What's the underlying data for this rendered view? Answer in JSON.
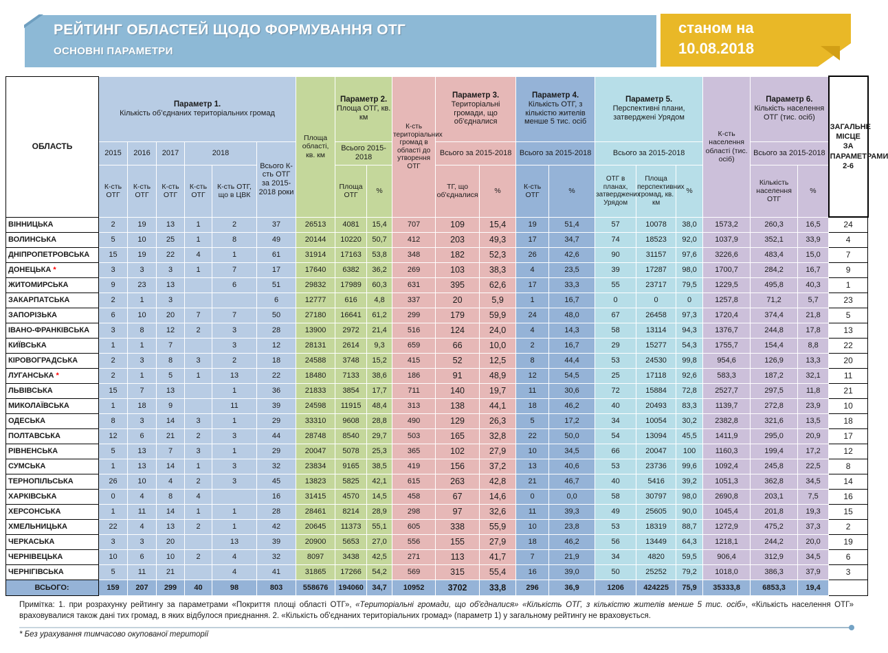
{
  "banner": {
    "title": "РЕЙТИНГ ОБЛАСТЕЙ ЩОДО ФОРМУВАННЯ ОТГ",
    "subtitle": "ОСНОВНІ ПАРАМЕТРИ",
    "date_badge": {
      "line1": "станом на",
      "line2": "10.08.2018"
    }
  },
  "colors": {
    "banner_blue": "#8DB9D6",
    "badge_yellow": "#E9B827",
    "param1_blue": "#B8CCE4",
    "green": "#C4D79B",
    "pink": "#E6B8B7",
    "param4_blue": "#95B3D7",
    "cyan": "#B7DEE8",
    "purple": "#CCC0DA",
    "totals_blue": "#95B3D7",
    "asterisk_red": "#FF0000"
  },
  "table": {
    "headers": {
      "oblast": "ОБЛАСТЬ",
      "param1": {
        "title": "Параметр 1.",
        "subtitle": "Кількість об’єднаних територіальних громад"
      },
      "years": [
        "2015",
        "2016",
        "2017",
        "2018"
      ],
      "k_otg": "К-сть ОТГ",
      "k_otg_cvk": "К-сть ОТГ, що в ЦВК",
      "total_k_otg": "Всього К-сть ОТГ за 2015-2018 роки",
      "area_oblast": "Площа області, кв. км",
      "param2": {
        "title": "Параметр 2.",
        "subtitle": "Площа ОТГ, кв. км",
        "total": "Всього 2015-2018",
        "col1": "Площа ОТГ",
        "col2": "%"
      },
      "k_teryt_gromad": "К-сть територіальних громад в області до утворення ОТГ",
      "param3": {
        "title": "Параметр 3.",
        "subtitle": "Територіальні громади, що об'єдналися",
        "total": "Всього за 2015-2018",
        "col1": "ТГ, що об'єдналися",
        "col2": "%"
      },
      "param4": {
        "title": "Параметр 4.",
        "subtitle": "Кількість ОТГ, з кількістю жителів менше 5 тис. осіб",
        "total": "Всього за 2015-2018",
        "col1": "К-сть ОТГ",
        "col2": "%"
      },
      "param5": {
        "title": "Параметр 5.",
        "subtitle": "Перспективні плани, затверджені Урядом",
        "total": "Всього за 2015-2018",
        "col1": "ОТГ в планах, затверджених Урядом",
        "col2": "Площа перспективних громад, кв. км",
        "col3": "%"
      },
      "k_naselennya_oblasti": "К-сть населення області (тис. осіб)",
      "param6": {
        "title": "Параметр 6.",
        "subtitle": "Кількість населення ОТГ (тис. осіб)",
        "total": "Всього за 2015-2018",
        "col1": "Кількість населення ОТГ",
        "col2": "%"
      },
      "place": "ЗАГАЛЬНЕ МІСЦЕ ЗА ПАРАМЕТРАМИ 2-6"
    },
    "rows": [
      {
        "name": "ВІННИЦЬКА",
        "star": false,
        "v": [
          "2",
          "19",
          "13",
          "1",
          "2",
          "37",
          "26513",
          "4081",
          "15,4",
          "707",
          "109",
          "15,4",
          "19",
          "51,4",
          "57",
          "10078",
          "38,0",
          "1573,2",
          "260,3",
          "16,5",
          "24"
        ]
      },
      {
        "name": "ВОЛИНСЬКА",
        "star": false,
        "v": [
          "5",
          "10",
          "25",
          "1",
          "8",
          "49",
          "20144",
          "10220",
          "50,7",
          "412",
          "203",
          "49,3",
          "17",
          "34,7",
          "74",
          "18523",
          "92,0",
          "1037,9",
          "352,1",
          "33,9",
          "4"
        ]
      },
      {
        "name": "ДНІПРОПЕТРОВСЬКА",
        "star": false,
        "v": [
          "15",
          "19",
          "22",
          "4",
          "1",
          "61",
          "31914",
          "17163",
          "53,8",
          "348",
          "182",
          "52,3",
          "26",
          "42,6",
          "90",
          "31157",
          "97,6",
          "3226,6",
          "483,4",
          "15,0",
          "7"
        ]
      },
      {
        "name": "ДОНЕЦЬКА",
        "star": true,
        "v": [
          "3",
          "3",
          "3",
          "1",
          "7",
          "17",
          "17640",
          "6382",
          "36,2",
          "269",
          "103",
          "38,3",
          "4",
          "23,5",
          "39",
          "17287",
          "98,0",
          "1700,7",
          "284,2",
          "16,7",
          "9"
        ]
      },
      {
        "name": "ЖИТОМИРСЬКА",
        "star": false,
        "v": [
          "9",
          "23",
          "13",
          "",
          "6",
          "51",
          "29832",
          "17989",
          "60,3",
          "631",
          "395",
          "62,6",
          "17",
          "33,3",
          "55",
          "23717",
          "79,5",
          "1229,5",
          "495,8",
          "40,3",
          "1"
        ]
      },
      {
        "name": "ЗАКАРПАТСЬКА",
        "star": false,
        "v": [
          "2",
          "1",
          "3",
          "",
          "",
          "6",
          "12777",
          "616",
          "4,8",
          "337",
          "20",
          "5,9",
          "1",
          "16,7",
          "0",
          "0",
          "0",
          "1257,8",
          "71,2",
          "5,7",
          "23"
        ]
      },
      {
        "name": "ЗАПОРІЗЬКА",
        "star": false,
        "v": [
          "6",
          "10",
          "20",
          "7",
          "7",
          "50",
          "27180",
          "16641",
          "61,2",
          "299",
          "179",
          "59,9",
          "24",
          "48,0",
          "67",
          "26458",
          "97,3",
          "1720,4",
          "374,4",
          "21,8",
          "5"
        ]
      },
      {
        "name": "ІВАНО-ФРАНКІВСЬКА",
        "star": false,
        "v": [
          "3",
          "8",
          "12",
          "2",
          "3",
          "28",
          "13900",
          "2972",
          "21,4",
          "516",
          "124",
          "24,0",
          "4",
          "14,3",
          "58",
          "13114",
          "94,3",
          "1376,7",
          "244,8",
          "17,8",
          "13"
        ]
      },
      {
        "name": "КИЇВСЬКА",
        "star": false,
        "v": [
          "1",
          "1",
          "7",
          "",
          "3",
          "12",
          "28131",
          "2614",
          "9,3",
          "659",
          "66",
          "10,0",
          "2",
          "16,7",
          "29",
          "15277",
          "54,3",
          "1755,7",
          "154,4",
          "8,8",
          "22"
        ]
      },
      {
        "name": "КІРОВОГРАДСЬКА",
        "star": false,
        "v": [
          "2",
          "3",
          "8",
          "3",
          "2",
          "18",
          "24588",
          "3748",
          "15,2",
          "415",
          "52",
          "12,5",
          "8",
          "44,4",
          "53",
          "24530",
          "99,8",
          "954,6",
          "126,9",
          "13,3",
          "20"
        ]
      },
      {
        "name": "ЛУГАНСЬКА",
        "star": true,
        "v": [
          "2",
          "1",
          "5",
          "1",
          "13",
          "22",
          "18480",
          "7133",
          "38,6",
          "186",
          "91",
          "48,9",
          "12",
          "54,5",
          "25",
          "17118",
          "92,6",
          "583,3",
          "187,2",
          "32,1",
          "11"
        ]
      },
      {
        "name": "ЛЬВІВСЬКА",
        "star": false,
        "v": [
          "15",
          "7",
          "13",
          "",
          "1",
          "36",
          "21833",
          "3854",
          "17,7",
          "711",
          "140",
          "19,7",
          "11",
          "30,6",
          "72",
          "15884",
          "72,8",
          "2527,7",
          "297,5",
          "11,8",
          "21"
        ]
      },
      {
        "name": "МИКОЛАЇВСЬКА",
        "star": false,
        "v": [
          "1",
          "18",
          "9",
          "",
          "11",
          "39",
          "24598",
          "11915",
          "48,4",
          "313",
          "138",
          "44,1",
          "18",
          "46,2",
          "40",
          "20493",
          "83,3",
          "1139,7",
          "272,8",
          "23,9",
          "10"
        ]
      },
      {
        "name": "ОДЕСЬКА",
        "star": false,
        "v": [
          "8",
          "3",
          "14",
          "3",
          "1",
          "29",
          "33310",
          "9608",
          "28,8",
          "490",
          "129",
          "26,3",
          "5",
          "17,2",
          "34",
          "10054",
          "30,2",
          "2382,8",
          "321,6",
          "13,5",
          "18"
        ]
      },
      {
        "name": "ПОЛТАВСЬКА",
        "star": false,
        "v": [
          "12",
          "6",
          "21",
          "2",
          "3",
          "44",
          "28748",
          "8540",
          "29,7",
          "503",
          "165",
          "32,8",
          "22",
          "50,0",
          "54",
          "13094",
          "45,5",
          "1411,9",
          "295,0",
          "20,9",
          "17"
        ]
      },
      {
        "name": "РІВНЕНСЬКА",
        "star": false,
        "v": [
          "5",
          "13",
          "7",
          "3",
          "1",
          "29",
          "20047",
          "5078",
          "25,3",
          "365",
          "102",
          "27,9",
          "10",
          "34,5",
          "66",
          "20047",
          "100",
          "1160,3",
          "199,4",
          "17,2",
          "12"
        ]
      },
      {
        "name": "СУМСЬКА",
        "star": false,
        "v": [
          "1",
          "13",
          "14",
          "1",
          "3",
          "32",
          "23834",
          "9165",
          "38,5",
          "419",
          "156",
          "37,2",
          "13",
          "40,6",
          "53",
          "23736",
          "99,6",
          "1092,4",
          "245,8",
          "22,5",
          "8"
        ]
      },
      {
        "name": "ТЕРНОПІЛЬСЬКА",
        "star": false,
        "v": [
          "26",
          "10",
          "4",
          "2",
          "3",
          "45",
          "13823",
          "5825",
          "42,1",
          "615",
          "263",
          "42,8",
          "21",
          "46,7",
          "40",
          "5416",
          "39,2",
          "1051,3",
          "362,8",
          "34,5",
          "14"
        ]
      },
      {
        "name": "ХАРКІВСЬКА",
        "star": false,
        "v": [
          "0",
          "4",
          "8",
          "4",
          "",
          "16",
          "31415",
          "4570",
          "14,5",
          "458",
          "67",
          "14,6",
          "0",
          "0,0",
          "58",
          "30797",
          "98,0",
          "2690,8",
          "203,1",
          "7,5",
          "16"
        ]
      },
      {
        "name": "ХЕРСОНСЬКА",
        "star": false,
        "v": [
          "1",
          "11",
          "14",
          "1",
          "1",
          "28",
          "28461",
          "8214",
          "28,9",
          "298",
          "97",
          "32,6",
          "11",
          "39,3",
          "49",
          "25605",
          "90,0",
          "1045,4",
          "201,8",
          "19,3",
          "15"
        ]
      },
      {
        "name": "ХМЕЛЬНИЦЬКА",
        "star": false,
        "v": [
          "22",
          "4",
          "13",
          "2",
          "1",
          "42",
          "20645",
          "11373",
          "55,1",
          "605",
          "338",
          "55,9",
          "10",
          "23,8",
          "53",
          "18319",
          "88,7",
          "1272,9",
          "475,2",
          "37,3",
          "2"
        ]
      },
      {
        "name": "ЧЕРКАСЬКА",
        "star": false,
        "v": [
          "3",
          "3",
          "20",
          "",
          "13",
          "39",
          "20900",
          "5653",
          "27,0",
          "556",
          "155",
          "27,9",
          "18",
          "46,2",
          "56",
          "13449",
          "64,3",
          "1218,1",
          "244,2",
          "20,0",
          "19"
        ]
      },
      {
        "name": "ЧЕРНІВЕЦЬКА",
        "star": false,
        "v": [
          "10",
          "6",
          "10",
          "2",
          "4",
          "32",
          "8097",
          "3438",
          "42,5",
          "271",
          "113",
          "41,7",
          "7",
          "21,9",
          "34",
          "4820",
          "59,5",
          "906,4",
          "312,9",
          "34,5",
          "6"
        ]
      },
      {
        "name": "ЧЕРНІГІВСЬКА",
        "star": false,
        "v": [
          "5",
          "11",
          "21",
          "",
          "4",
          "41",
          "31865",
          "17266",
          "54,2",
          "569",
          "315",
          "55,4",
          "16",
          "39,0",
          "50",
          "25252",
          "79,2",
          "1018,0",
          "386,3",
          "37,9",
          "3"
        ]
      }
    ],
    "totals": {
      "label": "ВСЬОГО:",
      "v": [
        "159",
        "207",
        "299",
        "40",
        "98",
        "803",
        "558676",
        "194060",
        "34,7",
        "10952",
        "3702",
        "33,8",
        "296",
        "36,9",
        "1206",
        "424225",
        "75,9",
        "35333,8",
        "6853,3",
        "19,4",
        ""
      ]
    }
  },
  "footnotes": {
    "note_segments": [
      {
        "text": "Примітка: 1. при розрахунку рейтингу за параметрами «Покриття площі області ОТГ», ",
        "italic": false
      },
      {
        "text": "«Територіальні громади, що об'єдналися»",
        "italic": true
      },
      {
        "text": " ",
        "italic": false
      },
      {
        "text": "«Кількість ОТГ, з кількістю жителів менше 5 тис. осіб»",
        "italic": true
      },
      {
        "text": ", «Кількість населення ОТГ» враховувалися також дані тих громад, в  яких відбулося приєднання. 2. «Кількість  об'єднаних територіальних громад» (параметр 1) у загальному рейтингу  не враховується.",
        "italic": false
      }
    ],
    "asterisk_note": "* Без урахування тимчасово окупованої території"
  }
}
